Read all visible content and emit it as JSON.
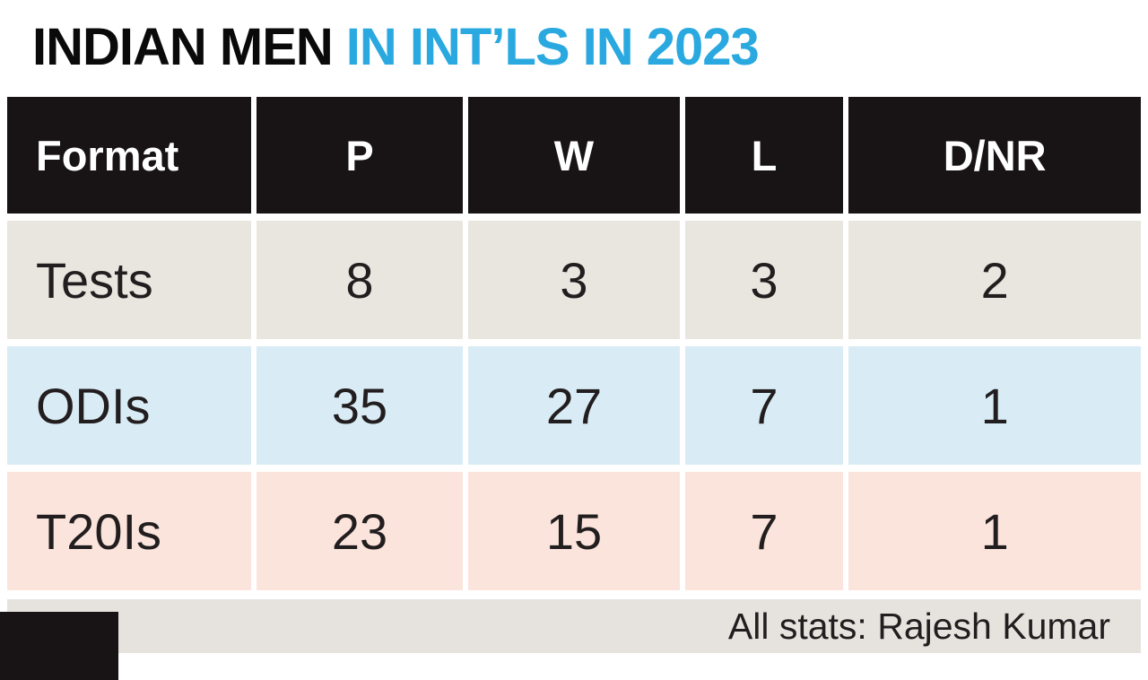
{
  "title": {
    "part_black": "INDIAN MEN",
    "part_blue": "IN INT’LS IN 2023"
  },
  "colors": {
    "accent-blue": "#29a9e0",
    "header-bg": "#181314",
    "row-tests-bg": "#e9e6e0",
    "row-odis-bg": "#d9ecf5",
    "row-t20-bg": "#fbe4dc",
    "footer-bg": "#e6e3de",
    "text-dark": "#221e1f",
    "gap-white": "#ffffff"
  },
  "chart_data": {
    "type": "table",
    "title": "INDIAN MEN IN INT’LS IN 2023",
    "columns": [
      "Format",
      "P",
      "W",
      "L",
      "D/NR"
    ],
    "rows": [
      [
        "Tests",
        "8",
        "3",
        "3",
        "2"
      ],
      [
        "ODIs",
        "35",
        "27",
        "7",
        "1"
      ],
      [
        "T20Is",
        "23",
        "15",
        "7",
        "1"
      ]
    ]
  },
  "footer": {
    "credit": "All stats: Rajesh Kumar"
  }
}
